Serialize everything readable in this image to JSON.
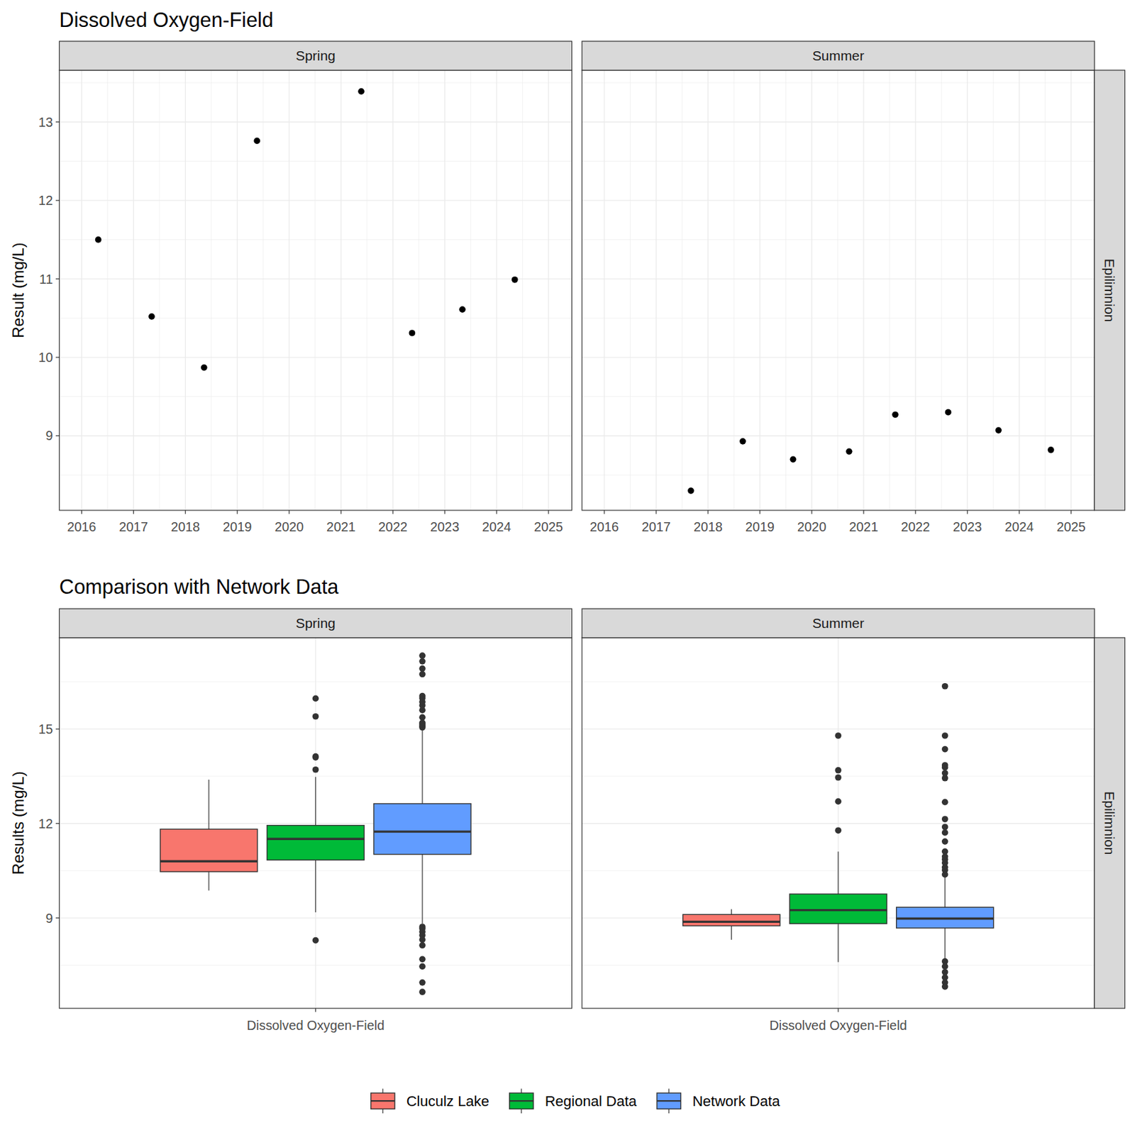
{
  "chart_data": [
    {
      "type": "scatter",
      "title": "Dissolved Oxygen-Field",
      "y_label": "Result (mg/L)",
      "row_label": "Epilimnion",
      "color": "#000000",
      "grid": true,
      "xlim": [
        2015.57,
        2025.45
      ],
      "xticks": [
        2016,
        2017,
        2018,
        2019,
        2020,
        2021,
        2022,
        2023,
        2024,
        2025
      ],
      "ylim": [
        8.05,
        13.66
      ],
      "yticks": [
        9,
        10,
        11,
        12,
        13
      ],
      "facets": [
        {
          "label": "Spring",
          "x": [
            2016.32,
            2017.35,
            2018.36,
            2019.38,
            2021.39,
            2022.37,
            2023.34,
            2024.35
          ],
          "values": [
            11.5,
            10.52,
            9.87,
            12.76,
            13.39,
            10.31,
            10.61,
            10.99
          ]
        },
        {
          "label": "Summer",
          "x": [
            2017.67,
            2018.67,
            2019.64,
            2020.72,
            2021.61,
            2022.63,
            2023.6,
            2024.61
          ],
          "values": [
            8.3,
            8.93,
            8.7,
            8.8,
            9.27,
            9.3,
            9.07,
            8.82
          ]
        }
      ]
    },
    {
      "type": "box",
      "title": "Comparison with Network Data",
      "y_label": "Results (mg/L)",
      "row_label": "Epilimnion",
      "categories": [
        "Dissolved Oxygen-Field"
      ],
      "grid": true,
      "legend": "bottom",
      "ylim": [
        6.13,
        17.9
      ],
      "yticks": [
        9,
        12,
        15
      ],
      "series": [
        {
          "name": "Cluculz Lake",
          "color": "#F8766D"
        },
        {
          "name": "Regional Data",
          "color": "#00BA38"
        },
        {
          "name": "Network Data",
          "color": "#619CFF"
        }
      ],
      "facets": [
        {
          "label": "Spring",
          "boxes": [
            {
              "min": 9.87,
              "q1": 10.47,
              "median": 10.8,
              "q3": 11.82,
              "max": 13.39,
              "outliers": []
            },
            {
              "min": 9.18,
              "q1": 10.84,
              "median": 11.51,
              "q3": 11.94,
              "max": 13.48,
              "outliers": [
                15.97,
                15.4,
                14.13,
                14.1,
                13.71,
                8.29
              ]
            },
            {
              "min": 8.82,
              "q1": 11.02,
              "median": 11.74,
              "q3": 12.63,
              "max": 15.02,
              "outliers": [
                15.05,
                15.1,
                15.15,
                15.2,
                15.37,
                15.6,
                15.75,
                15.86,
                15.98,
                16.05,
                16.74,
                16.92,
                17.15,
                17.33,
                8.72,
                8.66,
                8.56,
                8.45,
                8.31,
                8.13,
                7.69,
                7.46,
                6.95,
                6.65
              ]
            }
          ]
        },
        {
          "label": "Summer",
          "boxes": [
            {
              "min": 8.31,
              "q1": 8.75,
              "median": 8.88,
              "q3": 9.11,
              "max": 9.28,
              "outliers": []
            },
            {
              "min": 7.6,
              "q1": 8.82,
              "median": 9.25,
              "q3": 9.76,
              "max": 11.11,
              "outliers": [
                11.78,
                12.7,
                13.46,
                13.69,
                14.79
              ]
            },
            {
              "min": 7.72,
              "q1": 8.68,
              "median": 8.98,
              "q3": 9.34,
              "max": 10.3,
              "outliers": [
                10.38,
                10.52,
                10.61,
                10.75,
                10.86,
                10.95,
                11.11,
                11.43,
                11.71,
                11.89,
                12.14,
                12.68,
                13.44,
                13.6,
                13.78,
                13.85,
                14.36,
                14.79,
                16.36,
                7.62,
                7.46,
                7.28,
                7.11,
                6.95,
                6.82
              ]
            }
          ]
        }
      ]
    }
  ]
}
